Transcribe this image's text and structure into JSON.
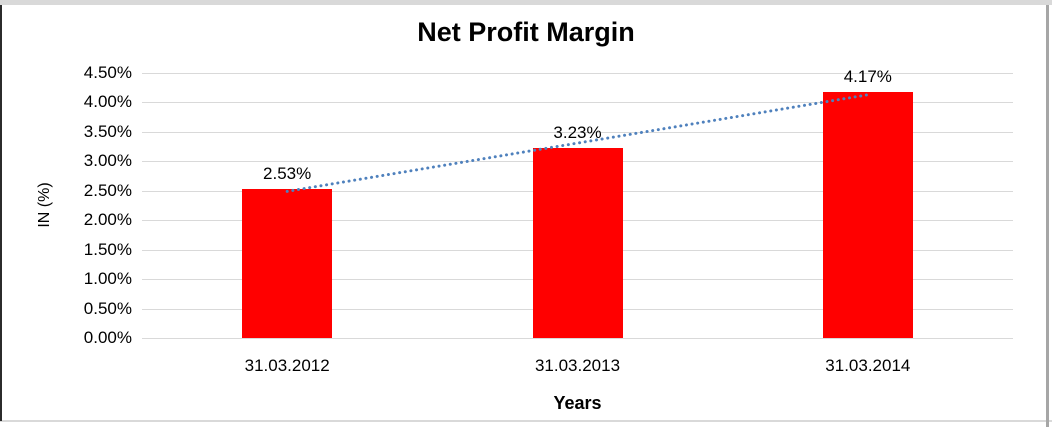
{
  "chart_data": {
    "type": "bar",
    "title": "Net Profit Margin",
    "xlabel": "Years",
    "ylabel": "IN (%)",
    "categories": [
      "31.03.2012",
      "31.03.2013",
      "31.03.2014"
    ],
    "values": [
      2.53,
      3.23,
      4.17
    ],
    "data_labels": [
      "2.53%",
      "3.23%",
      "4.17%"
    ],
    "yticks": [
      "0.00%",
      "0.50%",
      "1.00%",
      "1.50%",
      "2.00%",
      "2.50%",
      "3.00%",
      "3.50%",
      "4.00%",
      "4.50%"
    ],
    "ylim": [
      0,
      4.5
    ],
    "grid": true,
    "legend_position": "none",
    "bar_color": "#ff0000",
    "gridline_color": "#d9d9d9",
    "trendline": {
      "type": "linear",
      "style": "dotted",
      "color": "#4f81bd",
      "start_value": 2.49,
      "end_value": 4.13
    }
  }
}
